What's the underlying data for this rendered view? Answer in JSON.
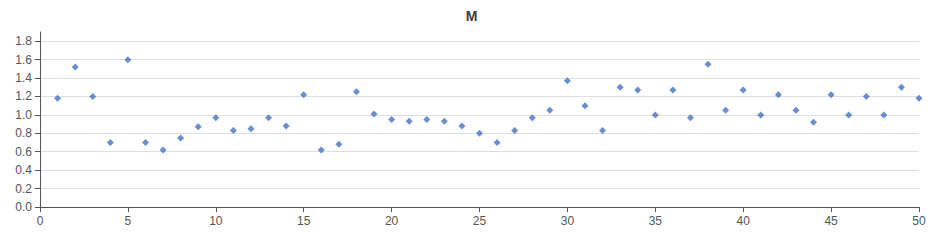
{
  "chart_data": {
    "type": "scatter",
    "title": "M",
    "x": [
      1,
      2,
      3,
      4,
      5,
      6,
      7,
      8,
      9,
      10,
      11,
      12,
      13,
      14,
      15,
      16,
      17,
      18,
      19,
      20,
      21,
      22,
      23,
      24,
      25,
      26,
      27,
      28,
      29,
      30,
      31,
      32,
      33,
      34,
      35,
      36,
      37,
      38,
      39,
      40,
      41,
      42,
      43,
      44,
      45,
      46,
      47,
      48,
      49,
      50
    ],
    "values": [
      1.18,
      1.52,
      1.2,
      0.7,
      1.6,
      0.7,
      0.62,
      0.75,
      0.87,
      0.97,
      0.83,
      0.85,
      0.97,
      0.88,
      1.22,
      0.62,
      0.68,
      1.25,
      1.01,
      0.95,
      0.93,
      0.95,
      0.93,
      0.88,
      0.8,
      0.7,
      0.83,
      0.97,
      1.05,
      1.37,
      1.1,
      0.83,
      1.3,
      1.27,
      1.0,
      1.27,
      0.97,
      1.55,
      1.05,
      1.27,
      1.0,
      1.22,
      1.05,
      0.92,
      1.22,
      1.0,
      1.2,
      1.0,
      1.3,
      1.18
    ],
    "color": "#4472C4",
    "marker": "diamond",
    "xlim": [
      0,
      50
    ],
    "ylim": [
      0,
      1.9
    ],
    "xticks": [
      0,
      5,
      10,
      15,
      20,
      25,
      30,
      35,
      40,
      45,
      50
    ],
    "yticks": [
      {
        "value": 0,
        "label": "0.0"
      },
      0.2,
      0.4,
      0.6,
      0.8,
      {
        "value": 1.0,
        "label": "1.0"
      },
      1.2,
      1.4,
      1.6,
      1.8
    ],
    "grid": "y"
  }
}
